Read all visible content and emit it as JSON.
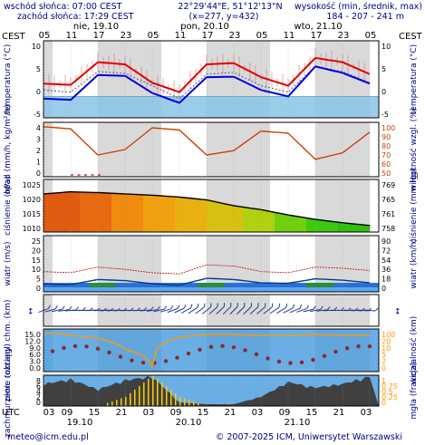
{
  "header": {
    "sunrise": "wschód słońca: 07:00 CEST",
    "sunset": "zachód słońca: 17:29 CEST",
    "coords": "22°29'44\"E, 51°12'13\"N",
    "grid": "(x=277, y=432)",
    "alt_label": "wysokość (min, średnik, max)",
    "alt_values": "184 - 207 - 241 m",
    "tz_left": "CEST",
    "tz_right": "CEST"
  },
  "footer": {
    "email": "meteo@icm.edu.pl",
    "copyright": "© 2007-2025 ICM, Uniwersytet Warszawski",
    "utc": "UTC"
  },
  "top_axis": {
    "hours": [
      "05",
      "11",
      "17",
      "23",
      "05",
      "11",
      "17",
      "23",
      "05",
      "11",
      "17",
      "23",
      "05"
    ],
    "days": [
      "nie, 19.10",
      "pon, 20.10",
      "wto, 21.10"
    ]
  },
  "bottom_axis": {
    "hours": [
      "03",
      "09",
      "15",
      "21",
      "03",
      "09",
      "15",
      "21",
      "03",
      "09",
      "15",
      "21",
      "03"
    ],
    "days": [
      "19.10",
      "20.10",
      "21.10"
    ]
  },
  "colors": {
    "frame": "#000000",
    "night": "#d9d9d9",
    "temp_line": "#e00000",
    "temp_dew": "#0000dd",
    "temp_fill_below": "#89c4e8",
    "humidity": "#c84000",
    "precip": "#c00000",
    "wind": "#0050c8",
    "visibility": "#ff9900",
    "cloud_dark": "#404040",
    "cloud_light": "#a0a0a0",
    "fog": "#ffcc00",
    "sky_blue": "#6aaee6"
  },
  "chart_data": [
    {
      "type": "line",
      "id": "temperature",
      "ylabel_left": "temperatura (°C)",
      "ylabel_right": "temperatura (°C)",
      "left_ticks": [
        "10",
        "5",
        "0",
        "-5"
      ],
      "right_ticks": [
        "10",
        "5",
        "0",
        "-5"
      ],
      "ylim": [
        -5,
        13
      ],
      "x_hours": [
        0,
        6,
        12,
        18,
        24,
        30,
        36,
        42,
        48,
        54,
        60,
        66,
        72
      ],
      "series": [
        {
          "values": [
            3.0,
            2.7,
            8.0,
            7.5,
            3.2,
            1.0,
            7.5,
            7.8,
            4.5,
            2.5,
            9.0,
            8.0,
            5.2
          ]
        },
        {
          "values": [
            -0.5,
            -0.8,
            5.0,
            4.8,
            0.8,
            -1.5,
            4.5,
            4.6,
            1.5,
            0.0,
            7.0,
            5.5,
            3.0
          ]
        },
        {
          "values": [
            1.5,
            1.0,
            5.8,
            5.4,
            2.5,
            -0.5,
            5.2,
            5.6,
            2.5,
            1.0,
            7.0,
            5.8,
            3.2
          ]
        }
      ]
    },
    {
      "type": "line",
      "id": "precip-humidity",
      "ylabel_left": "opad (mm/h, kg/m²/h)",
      "ylabel_right": "wilgotność wzgl. (%)",
      "left_ticks": [
        "4",
        "3",
        "2",
        "1",
        "0"
      ],
      "right_ticks": [
        "100",
        "90",
        "80",
        "70",
        "60",
        "50"
      ],
      "ylim_right": [
        50,
        100
      ],
      "x_hours": [
        0,
        6,
        12,
        18,
        24,
        30,
        36,
        42,
        48,
        54,
        60,
        66,
        72
      ],
      "humidity": [
        96,
        94,
        70,
        75,
        95,
        93,
        70,
        74,
        92,
        90,
        66,
        72,
        91
      ]
    },
    {
      "type": "area",
      "id": "pressure",
      "ylabel_left": "ciśnienie (hPa)",
      "ylabel_right": "ciśnienie (mm Hg)",
      "left_ticks": [
        "1025",
        "1020",
        "1015",
        "1010"
      ],
      "right_ticks": [
        "769",
        "765",
        "761",
        "758"
      ],
      "ylim": [
        1007,
        1027
      ],
      "x_hours": [
        0,
        6,
        12,
        18,
        24,
        30,
        36,
        42,
        48,
        54,
        60,
        66,
        72
      ],
      "values": [
        1021.5,
        1022.3,
        1022.0,
        1021.5,
        1021.0,
        1020.3,
        1019.2,
        1017.0,
        1015.5,
        1013.5,
        1011.8,
        1010.5,
        1009.5
      ]
    },
    {
      "type": "line",
      "id": "wind",
      "ylabel_left": "wiatr (m/s)",
      "ylabel_right": "wiatr (km/h)",
      "left_ticks": [
        "25",
        "20",
        "15",
        "10",
        "5",
        "0"
      ],
      "right_ticks": [
        "90",
        "72",
        "54",
        "36",
        "18",
        "0"
      ],
      "ylim": [
        0,
        25
      ],
      "x_hours": [
        0,
        6,
        12,
        18,
        24,
        30,
        36,
        42,
        48,
        54,
        60,
        66,
        72
      ],
      "mean": [
        3.5,
        3.2,
        5.5,
        5.0,
        3.6,
        3.0,
        6.0,
        5.5,
        4.0,
        3.8,
        5.8,
        5.2,
        4.0
      ],
      "gust": [
        9.0,
        8.5,
        11.0,
        10.0,
        8.5,
        8.0,
        12.0,
        11.5,
        9.0,
        8.5,
        11.0,
        10.5,
        9.5
      ]
    },
    {
      "type": "scatter",
      "id": "cloud-base-visibility",
      "ylabel_left": "pion. rozciągł. chm. (km)",
      "ylabel_right": "widzialność (km)",
      "left_ticks": [
        "15.0",
        "12.0",
        "9.0",
        "6.0",
        "3.0",
        "0.0"
      ],
      "right_ticks": [
        "100",
        "20",
        "10",
        "5",
        "2",
        "0"
      ],
      "ylim": [
        0,
        15
      ],
      "x_hours": [
        0,
        6,
        12,
        18,
        24,
        30,
        36,
        42,
        48,
        54,
        60,
        66,
        72
      ],
      "visibility": [
        60,
        40,
        25,
        5,
        0.4,
        30,
        45,
        45,
        40,
        40,
        45,
        40,
        40
      ]
    },
    {
      "type": "area",
      "id": "cloud-fog",
      "ylabel_left": "zachmurzenie (oktany)",
      "ylabel_right": "mgła (frakcja)",
      "left_ticks": [
        "8",
        "6",
        "4",
        "2",
        "0"
      ],
      "right_ticks": [
        "1",
        "0.75",
        "0.5",
        "0.25",
        "0"
      ],
      "ylim": [
        0,
        8
      ],
      "x_hours": [
        0,
        6,
        12,
        18,
        24,
        30,
        36,
        42,
        48,
        54,
        60,
        66,
        72
      ],
      "cloud_total": [
        6.0,
        7.2,
        4.5,
        7.0,
        8.0,
        1.0,
        0.5,
        0.5,
        2.5,
        6.5,
        5.0,
        6.0,
        8.0
      ],
      "fog_fraction": [
        0,
        0,
        0,
        0.3,
        1.0,
        0.3,
        0,
        0,
        0,
        0,
        0,
        0,
        0
      ]
    }
  ]
}
